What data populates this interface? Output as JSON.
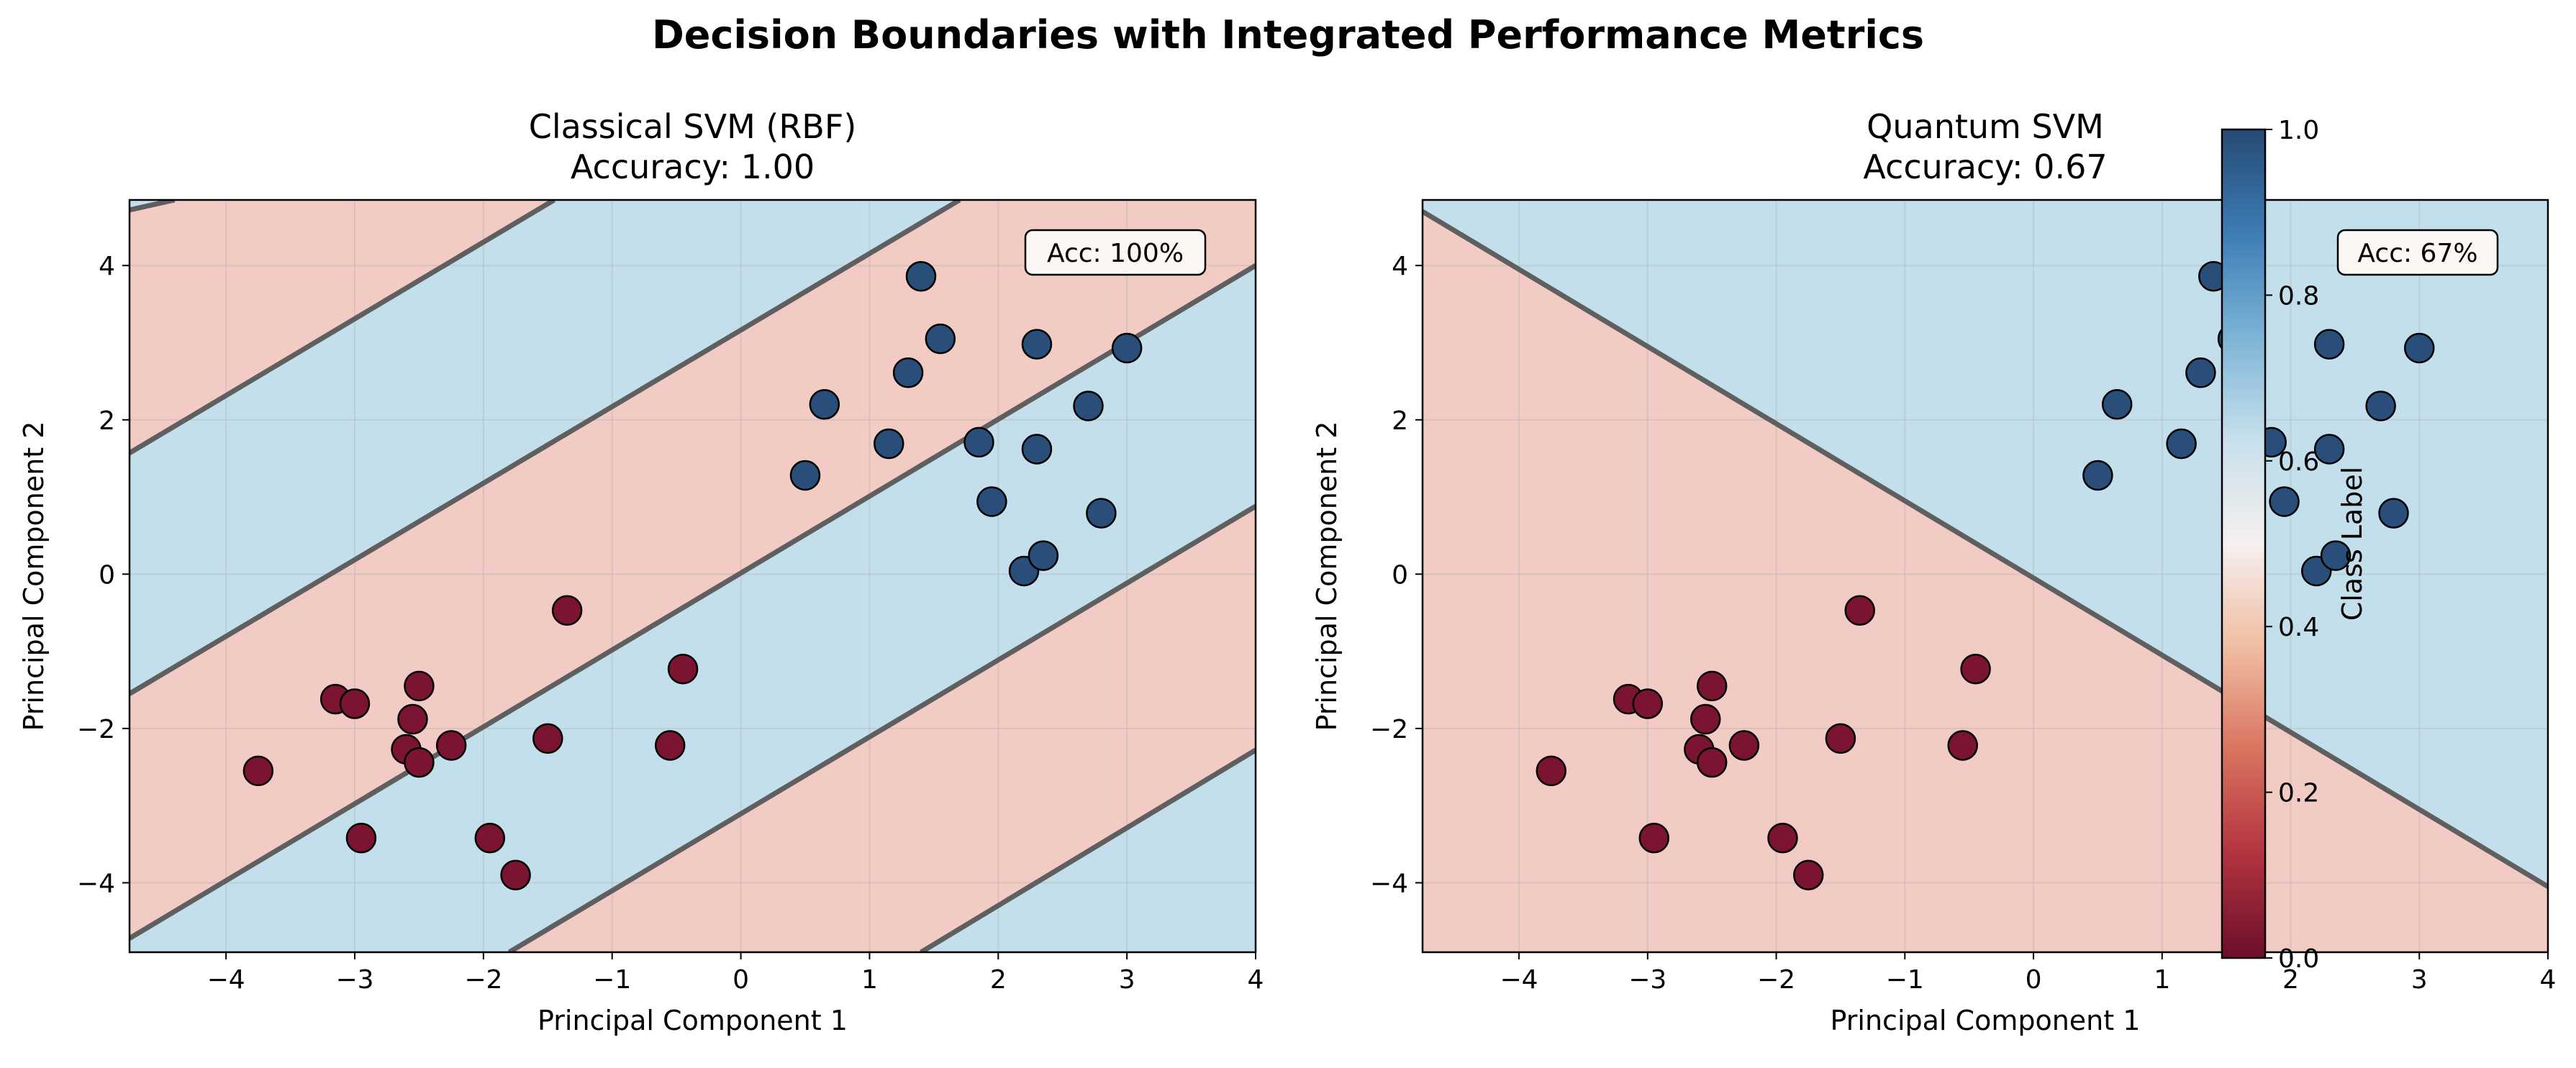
{
  "figure": {
    "title": "Decision Boundaries with Integrated Performance Metrics"
  },
  "colors": {
    "class0_region": "#f2cbc4",
    "class1_region": "#c3dfec",
    "class0_point": "#7a1430",
    "class1_point": "#2a4e7a",
    "boundary": "#5f5f5f",
    "grid": "#b0b0b0"
  },
  "chart_data": [
    {
      "type": "scatter",
      "title": "Classical SVM (RBF)",
      "subtitle": "Accuracy: 1.00",
      "xlabel": "Principal Component 1",
      "ylabel": "Principal Component 2",
      "xlim": [
        -4.75,
        4.0
      ],
      "ylim": [
        -4.9,
        4.85
      ],
      "xticks": [
        -4,
        -3,
        -2,
        -1,
        0,
        1,
        2,
        3,
        4
      ],
      "yticks": [
        -4,
        -2,
        0,
        2,
        4
      ],
      "grid": true,
      "annotation": "Acc: 100%",
      "annotation_position": "top-right",
      "decision_regions": "alternating diagonal bands",
      "boundaries": [
        {
          "x": [
            -4.75,
            -4.4
          ],
          "y": [
            4.72,
            4.85
          ]
        },
        {
          "x": [
            -4.75,
            -1.45
          ],
          "y": [
            1.57,
            4.85
          ]
        },
        {
          "x": [
            -4.75,
            1.7
          ],
          "y": [
            -1.55,
            4.85
          ]
        },
        {
          "x": [
            -4.75,
            4.0
          ],
          "y": [
            -4.72,
            4.0
          ]
        },
        {
          "x": [
            -1.8,
            4.0
          ],
          "y": [
            -4.9,
            0.88
          ]
        },
        {
          "x": [
            1.4,
            4.0
          ],
          "y": [
            -4.9,
            -2.28
          ]
        }
      ],
      "series": [
        {
          "label": 0,
          "x": [
            -3.75,
            -3.15,
            -3.0,
            -2.55,
            -2.6,
            -2.5,
            -2.5,
            -2.25,
            -2.95,
            -1.95,
            -1.75,
            -1.5,
            -1.35,
            -0.55,
            -0.45
          ],
          "y": [
            -2.55,
            -1.62,
            -1.68,
            -1.88,
            -2.27,
            -2.44,
            -1.45,
            -2.22,
            -3.42,
            -3.42,
            -3.9,
            -2.13,
            -0.47,
            -2.22,
            -1.23
          ]
        },
        {
          "label": 1,
          "x": [
            0.5,
            0.65,
            1.15,
            1.3,
            1.4,
            1.55,
            1.85,
            1.95,
            2.2,
            2.3,
            2.3,
            2.35,
            2.7,
            2.8,
            3.0
          ],
          "y": [
            1.28,
            2.2,
            1.69,
            2.61,
            3.86,
            3.05,
            1.71,
            0.94,
            0.04,
            1.62,
            2.98,
            0.24,
            2.18,
            0.79,
            2.93
          ]
        }
      ]
    },
    {
      "type": "scatter",
      "title": "Quantum SVM",
      "subtitle": "Accuracy: 0.67",
      "xlabel": "Principal Component 1",
      "ylabel": "Principal Component 2",
      "xlim": [
        -4.75,
        4.0
      ],
      "ylim": [
        -4.9,
        4.85
      ],
      "xticks": [
        -4,
        -3,
        -2,
        -1,
        0,
        1,
        2,
        3,
        4
      ],
      "yticks": [
        -4,
        -2,
        0,
        2,
        4
      ],
      "grid": true,
      "annotation": "Acc: 67%",
      "annotation_position": "top-right",
      "decision_regions": "single linear boundary",
      "boundaries": [
        {
          "x": [
            -4.75,
            4.0
          ],
          "y": [
            4.7,
            -4.05
          ]
        }
      ],
      "series": [
        {
          "label": 0,
          "x": [
            -3.75,
            -3.15,
            -3.0,
            -2.55,
            -2.6,
            -2.5,
            -2.5,
            -2.25,
            -2.95,
            -1.95,
            -1.75,
            -1.5,
            -1.35,
            -0.55,
            -0.45
          ],
          "y": [
            -2.55,
            -1.62,
            -1.68,
            -1.88,
            -2.27,
            -2.44,
            -1.45,
            -2.22,
            -3.42,
            -3.42,
            -3.9,
            -2.13,
            -0.47,
            -2.22,
            -1.23
          ]
        },
        {
          "label": 1,
          "x": [
            0.5,
            0.65,
            1.15,
            1.3,
            1.4,
            1.55,
            1.85,
            1.95,
            2.2,
            2.3,
            2.3,
            2.35,
            2.7,
            2.8,
            3.0
          ],
          "y": [
            1.28,
            2.2,
            1.69,
            2.61,
            3.86,
            3.05,
            1.71,
            0.94,
            0.04,
            1.62,
            2.98,
            0.24,
            2.18,
            0.79,
            2.93
          ]
        }
      ]
    }
  ],
  "colorbar": {
    "label": "Class Label",
    "range": [
      0.0,
      1.0
    ],
    "ticks": [
      "0.0",
      "0.2",
      "0.4",
      "0.6",
      "0.8",
      "1.0"
    ],
    "colormap": "RdBu",
    "stops": [
      "#6b0e2a",
      "#b2333f",
      "#d9735f",
      "#f0bda2",
      "#f6f0ee",
      "#c8e0ec",
      "#7cb4d6",
      "#3d7cb5",
      "#264a73"
    ]
  }
}
